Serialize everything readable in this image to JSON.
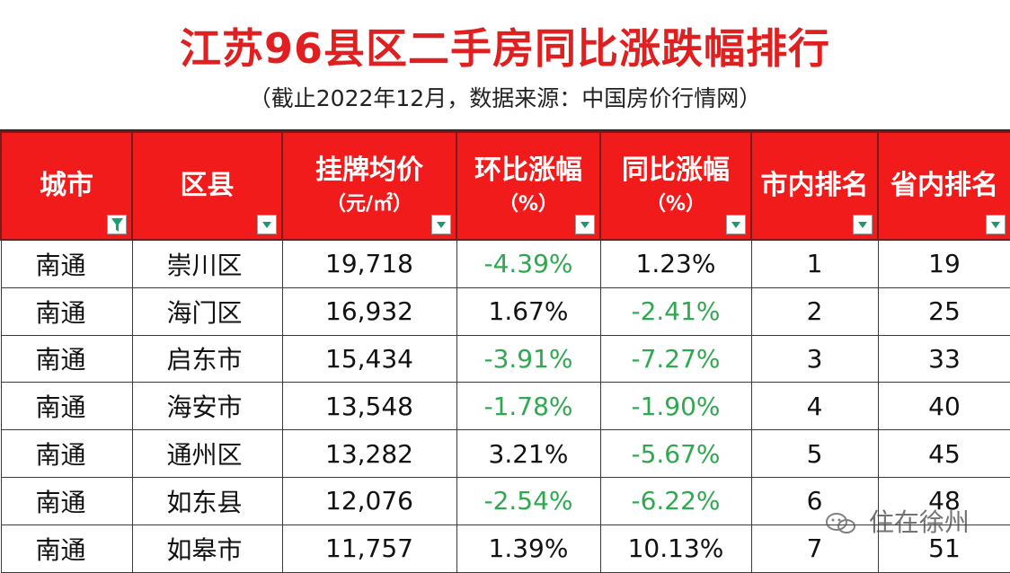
{
  "title": "江苏96县区二手房同比涨跌幅排行",
  "subtitle": "（截止2022年12月，数据来源：中国房价行情网）",
  "columns": [
    {
      "h1": "城市",
      "h2": ""
    },
    {
      "h1": "区县",
      "h2": ""
    },
    {
      "h1": "挂牌均价",
      "h2": "（元/㎡）"
    },
    {
      "h1": "环比涨幅",
      "h2": "（%）"
    },
    {
      "h1": "同比涨幅",
      "h2": "（%）"
    },
    {
      "h1": "市内排名",
      "h2": ""
    },
    {
      "h1": "省内排名",
      "h2": ""
    }
  ],
  "rows": [
    [
      "南通",
      "崇川区",
      "19,718",
      "-4.39%",
      "1.23%",
      "1",
      "19"
    ],
    [
      "南通",
      "海门区",
      "16,932",
      "1.67%",
      "-2.41%",
      "2",
      "25"
    ],
    [
      "南通",
      "启东市",
      "15,434",
      "-3.91%",
      "-7.27%",
      "3",
      "33"
    ],
    [
      "南通",
      "海安市",
      "13,548",
      "-1.78%",
      "-1.90%",
      "4",
      "40"
    ],
    [
      "南通",
      "通州区",
      "13,282",
      "3.21%",
      "-5.67%",
      "5",
      "45"
    ],
    [
      "南通",
      "如东县",
      "12,076",
      "-2.54%",
      "-6.22%",
      "6",
      "48"
    ],
    [
      "南通",
      "如皋市",
      "11,757",
      "1.39%",
      "10.13%",
      "7",
      "51"
    ]
  ],
  "watermark": "住在徐州",
  "colors": {
    "header_bg": "#f21b1b",
    "title": "#e02020",
    "negative": "#2fa84f"
  }
}
